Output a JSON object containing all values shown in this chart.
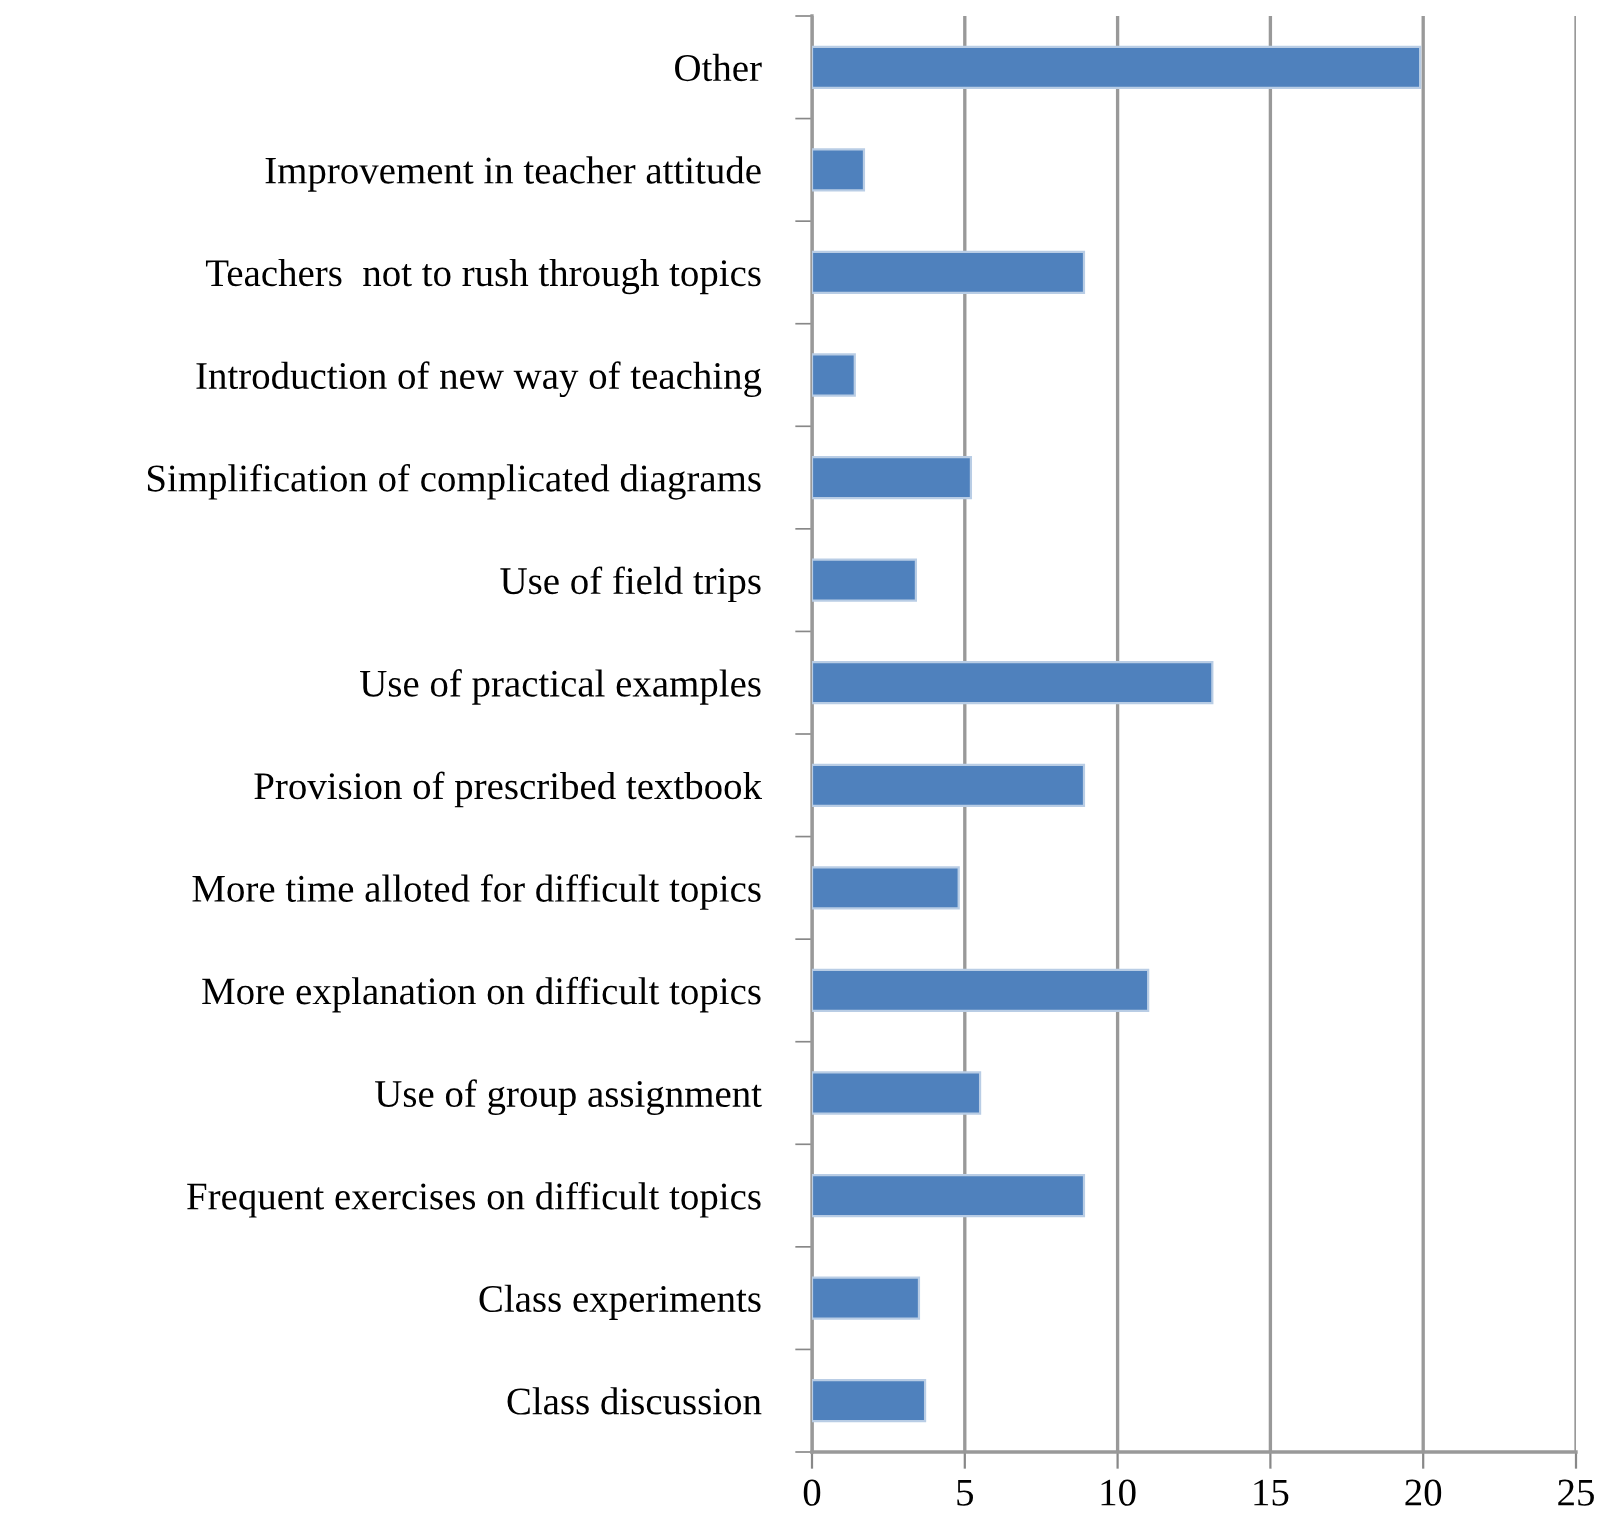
{
  "chart_data": {
    "type": "bar",
    "orientation": "horizontal",
    "categories": [
      "Other",
      "Improvement in teacher attitude",
      "Teachers  not to rush through topics",
      "Introduction of new way of teaching",
      "Simplification of complicated diagrams",
      "Use of field trips",
      "Use of practical examples",
      "Provision of prescribed textbook",
      "More time alloted for difficult topics",
      "More explanation on difficult topics",
      "Use of group assignment",
      "Frequent exercises on difficult topics",
      "Class experiments",
      "Class discussion"
    ],
    "values": [
      19.9,
      1.7,
      8.9,
      1.4,
      5.2,
      3.4,
      13.1,
      8.9,
      4.8,
      11.0,
      5.5,
      8.9,
      3.5,
      3.7
    ],
    "color": "#4f81bd",
    "xlim": [
      0,
      25
    ],
    "xticks": [
      0,
      5,
      10,
      15,
      20,
      25
    ],
    "grid": "x"
  }
}
